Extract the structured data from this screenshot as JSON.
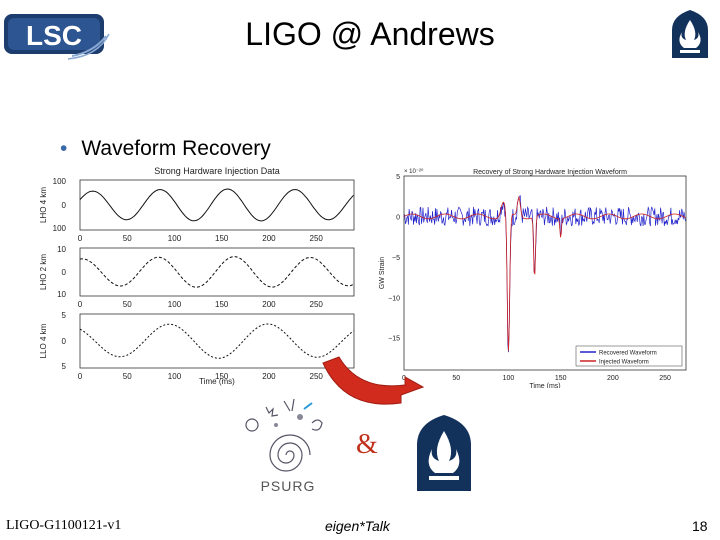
{
  "slide": {
    "title": "LIGO @ Andrews",
    "bullet": "Waveform Recovery",
    "ampersand": "&",
    "footer_left": "LIGO-G1100121-v1",
    "footer_center": "eigen*Talk",
    "footer_right": "18"
  },
  "logos": {
    "lsc": "LSC",
    "psurg": "PSURG",
    "andrews": "andrews-flame-logo"
  },
  "chart_data": [
    {
      "type": "line",
      "title": "Strong Hardware Injection Data",
      "xlabel": "Time (ms)",
      "panels": [
        {
          "ylabel": "LHO 4 km",
          "yticks": [
            "100",
            "0",
            "100"
          ],
          "ylim": [
            -100,
            100
          ]
        },
        {
          "ylabel": "LHO 2 km",
          "yticks": [
            "10",
            "0",
            "10"
          ],
          "ylim": [
            -10,
            10
          ]
        },
        {
          "ylabel": "LLO 4 km",
          "yticks": [
            "5",
            "0",
            "5"
          ],
          "ylim": [
            -5,
            5
          ]
        }
      ],
      "xticks": [
        "0",
        "50",
        "100",
        "150",
        "200",
        "250"
      ],
      "xlim": [
        0,
        290
      ]
    },
    {
      "type": "line",
      "title": "Recovery of Strong Hardware Injection Waveform",
      "xlabel": "Time (ms)",
      "ylabel": "GW Strain",
      "yscale_label": "× 10⁻²⁰",
      "yticks": [
        "5",
        "0",
        "−5",
        "−10",
        "−15"
      ],
      "xticks": [
        "0",
        "50",
        "100",
        "150",
        "200",
        "250"
      ],
      "xlim": [
        0,
        270
      ],
      "ylim": [
        -19,
        5
      ],
      "legend": [
        "Recovered Waveform",
        "Injected Waveform"
      ],
      "legend_position": "bottom-right",
      "colors": {
        "recovered": "#2222cc",
        "injected": "#cc2222"
      }
    }
  ]
}
